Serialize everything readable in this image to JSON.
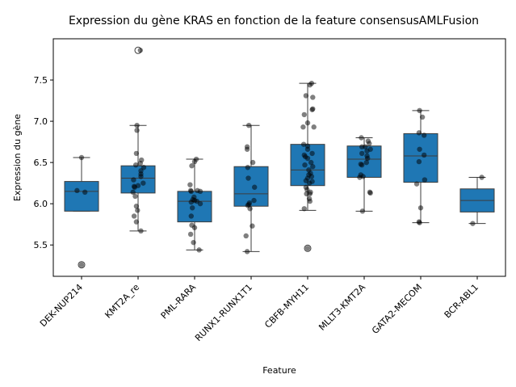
{
  "chart_data": {
    "type": "box",
    "title": "Expression du gène KRAS en fonction de la feature consensusAMLFusion",
    "xlabel": "Feature",
    "ylabel": "Expression du gène",
    "ylim": [
      5.12,
      8.0
    ],
    "yticks": [
      5.5,
      6.0,
      6.5,
      7.0,
      7.5
    ],
    "grid": false,
    "box_color": "#1f77b4",
    "categories": [
      "DEK-NUP214",
      "KMT2A_re",
      "PML-RARA",
      "RUNX1-RUNX1T1",
      "CBFB-MYH11",
      "MLLT3-KMT2A",
      "GATA2-MECOM",
      "BCR-ABL1"
    ],
    "boxes": [
      {
        "category": "DEK-NUP214",
        "whislo": 5.91,
        "q1": 5.91,
        "med": 6.15,
        "q3": 6.27,
        "whishi": 6.56,
        "fliers": [
          5.26
        ]
      },
      {
        "category": "KMT2A_re",
        "whislo": 5.67,
        "q1": 6.13,
        "med": 6.31,
        "q3": 6.46,
        "whishi": 6.95,
        "fliers": [
          7.86
        ]
      },
      {
        "category": "PML-RARA",
        "whislo": 5.44,
        "q1": 5.78,
        "med": 6.03,
        "q3": 6.15,
        "whishi": 6.54,
        "fliers": []
      },
      {
        "category": "RUNX1-RUNX1T1",
        "whislo": 5.42,
        "q1": 5.97,
        "med": 6.12,
        "q3": 6.45,
        "whishi": 6.95,
        "fliers": []
      },
      {
        "category": "CBFB-MYH11",
        "whislo": 5.92,
        "q1": 6.22,
        "med": 6.41,
        "q3": 6.72,
        "whishi": 7.46,
        "fliers": [
          5.46
        ]
      },
      {
        "category": "MLLT3-KMT2A",
        "whislo": 5.91,
        "q1": 6.32,
        "med": 6.54,
        "q3": 6.7,
        "whishi": 6.8,
        "fliers": []
      },
      {
        "category": "GATA2-MECOM",
        "whislo": 5.77,
        "q1": 6.26,
        "med": 6.58,
        "q3": 6.85,
        "whishi": 7.13,
        "fliers": []
      },
      {
        "category": "BCR-ABL1",
        "whislo": 5.76,
        "q1": 5.9,
        "med": 6.04,
        "q3": 6.18,
        "whishi": 6.32,
        "fliers": []
      }
    ],
    "points": [
      [
        [
          6.56,
          0.0
        ],
        [
          6.16,
          -0.08
        ],
        [
          6.14,
          0.06
        ],
        [
          5.26,
          0.0
        ]
      ],
      [
        [
          7.86,
          0.04
        ],
        [
          6.95,
          -0.02
        ],
        [
          6.89,
          -0.02
        ],
        [
          6.61,
          -0.03
        ],
        [
          6.53,
          0.06
        ],
        [
          6.49,
          0.04
        ],
        [
          6.47,
          -0.04
        ],
        [
          6.44,
          0.1
        ],
        [
          6.4,
          0.05
        ],
        [
          6.36,
          0.05
        ],
        [
          6.33,
          0.05
        ],
        [
          6.29,
          -0.08
        ],
        [
          6.25,
          0.09
        ],
        [
          6.22,
          0.0
        ],
        [
          6.21,
          -0.07
        ],
        [
          6.2,
          -0.06
        ],
        [
          6.14,
          -0.09
        ],
        [
          6.09,
          -0.05
        ],
        [
          5.97,
          -0.03
        ],
        [
          5.92,
          -0.01
        ],
        [
          5.85,
          -0.07
        ],
        [
          5.78,
          -0.03
        ],
        [
          5.67,
          0.05
        ]
      ],
      [
        [
          6.54,
          0.03
        ],
        [
          6.51,
          0.0
        ],
        [
          6.46,
          -0.05
        ],
        [
          6.23,
          -0.08
        ],
        [
          6.16,
          -0.07
        ],
        [
          6.16,
          0.05
        ],
        [
          6.15,
          0.1
        ],
        [
          6.15,
          -0.06
        ],
        [
          6.08,
          -0.01
        ],
        [
          6.05,
          -0.03
        ],
        [
          6.04,
          0.0
        ],
        [
          6.03,
          0.04
        ],
        [
          6.02,
          -0.06
        ],
        [
          6.0,
          0.1
        ],
        [
          5.95,
          -0.04
        ],
        [
          5.85,
          -0.06
        ],
        [
          5.74,
          -0.05
        ],
        [
          5.71,
          0.0
        ],
        [
          5.63,
          -0.07
        ],
        [
          5.53,
          -0.02
        ],
        [
          5.44,
          0.08
        ]
      ],
      [
        [
          6.95,
          -0.04
        ],
        [
          6.69,
          -0.07
        ],
        [
          6.66,
          -0.07
        ],
        [
          6.5,
          0.03
        ],
        [
          6.44,
          -0.06
        ],
        [
          6.31,
          -0.05
        ],
        [
          6.2,
          0.06
        ],
        [
          6.04,
          0.05
        ],
        [
          6.01,
          -0.03
        ],
        [
          5.99,
          -0.04
        ],
        [
          5.98,
          -0.06
        ],
        [
          5.94,
          -0.02
        ],
        [
          5.73,
          0.02
        ],
        [
          5.61,
          -0.09
        ],
        [
          5.42,
          -0.07
        ]
      ],
      [
        [
          7.46,
          0.07
        ],
        [
          7.44,
          0.04
        ],
        [
          7.31,
          -0.03
        ],
        [
          7.29,
          0.09
        ],
        [
          7.15,
          0.09
        ],
        [
          7.14,
          0.08
        ],
        [
          7.08,
          -0.06
        ],
        [
          6.98,
          0.0
        ],
        [
          6.93,
          0.11
        ],
        [
          6.93,
          -0.08
        ],
        [
          6.72,
          -0.07
        ],
        [
          6.7,
          0.0
        ],
        [
          6.66,
          0.0
        ],
        [
          6.61,
          0.08
        ],
        [
          6.59,
          -0.06
        ],
        [
          6.57,
          -0.04
        ],
        [
          6.55,
          0.0
        ],
        [
          6.5,
          0.06
        ],
        [
          6.47,
          -0.05
        ],
        [
          6.45,
          0.09
        ],
        [
          6.41,
          0.02
        ],
        [
          6.37,
          0.05
        ],
        [
          6.35,
          0.02
        ],
        [
          6.33,
          0.07
        ],
        [
          6.31,
          0.0
        ],
        [
          6.28,
          -0.03
        ],
        [
          6.27,
          0.08
        ],
        [
          6.25,
          0.03
        ],
        [
          6.2,
          -0.03
        ],
        [
          6.17,
          -0.01
        ],
        [
          6.14,
          0.05
        ],
        [
          6.12,
          -0.02
        ],
        [
          6.12,
          0.04
        ],
        [
          6.06,
          0.03
        ],
        [
          6.03,
          0.04
        ],
        [
          5.94,
          -0.06
        ],
        [
          5.46,
          0.0
        ]
      ],
      [
        [
          6.8,
          -0.05
        ],
        [
          6.76,
          0.07
        ],
        [
          6.73,
          0.09
        ],
        [
          6.69,
          0.02
        ],
        [
          6.69,
          -0.04
        ],
        [
          6.66,
          0.11
        ],
        [
          6.64,
          0.05
        ],
        [
          6.61,
          -0.04
        ],
        [
          6.58,
          0.05
        ],
        [
          6.55,
          0.06
        ],
        [
          6.5,
          0.04
        ],
        [
          6.48,
          -0.06
        ],
        [
          6.47,
          -0.04
        ],
        [
          6.35,
          -0.06
        ],
        [
          6.33,
          -0.02
        ],
        [
          6.32,
          -0.08
        ],
        [
          6.14,
          0.1
        ],
        [
          6.13,
          0.11
        ],
        [
          5.91,
          -0.03
        ]
      ],
      [
        [
          7.13,
          -0.02
        ],
        [
          7.05,
          0.03
        ],
        [
          6.86,
          -0.03
        ],
        [
          6.83,
          0.06
        ],
        [
          6.66,
          -0.02
        ],
        [
          6.59,
          0.06
        ],
        [
          6.51,
          -0.03
        ],
        [
          6.29,
          0.07
        ],
        [
          6.24,
          -0.07
        ],
        [
          5.95,
          0.0
        ],
        [
          5.78,
          -0.03
        ],
        [
          5.77,
          -0.02
        ]
      ],
      [
        [
          6.32,
          0.08
        ],
        [
          5.76,
          -0.08
        ]
      ]
    ]
  }
}
